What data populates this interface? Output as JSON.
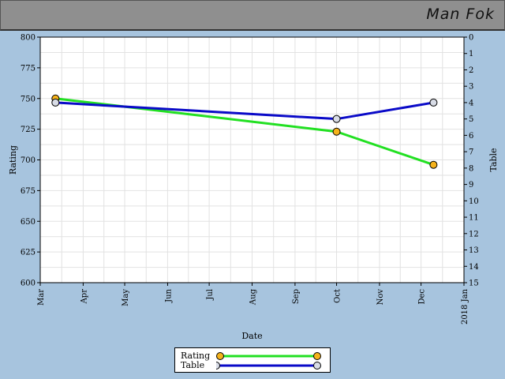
{
  "header": {
    "player_name": "Man Fok"
  },
  "colors": {
    "rating_line": "#22e022",
    "table_line": "#0a0ac8",
    "rating_marker": "#f5b21b",
    "table_marker": "#d8dce6",
    "plot_bg": "#ffffff",
    "grid": "#e2e2e2",
    "page_bg": "#a7c4de",
    "header_bg": "#8f8f8f"
  },
  "chart_data": {
    "type": "line",
    "xlabel": "Date",
    "ylabel": "Rating",
    "y2label": "Table",
    "x_ticks": [
      "Mar",
      "Apr",
      "May",
      "Jun",
      "Jul",
      "Aug",
      "Sep",
      "Oct",
      "Nov",
      "Dec",
      "2018 Jan"
    ],
    "xlim": [
      "2017-03-01",
      "2018-01-01"
    ],
    "ylim": [
      600,
      800
    ],
    "y_ticks": [
      600,
      625,
      650,
      675,
      700,
      725,
      750,
      775,
      800
    ],
    "y2lim": [
      0,
      15
    ],
    "y2_inverted": true,
    "y2_ticks": [
      0,
      1,
      2,
      3,
      4,
      5,
      6,
      7,
      8,
      9,
      10,
      11,
      12,
      13,
      14,
      15
    ],
    "grid": true,
    "legend_position": "bottom-center",
    "series": [
      {
        "name": "Rating",
        "axis": "left",
        "points": [
          {
            "x": "2017-03-12",
            "y": 750
          },
          {
            "x": "2017-10-01",
            "y": 723
          },
          {
            "x": "2017-12-10",
            "y": 696
          }
        ]
      },
      {
        "name": "Table",
        "axis": "right",
        "points": [
          {
            "x": "2017-03-12",
            "y": 4
          },
          {
            "x": "2017-10-01",
            "y": 5
          },
          {
            "x": "2017-12-10",
            "y": 4
          }
        ]
      }
    ]
  }
}
